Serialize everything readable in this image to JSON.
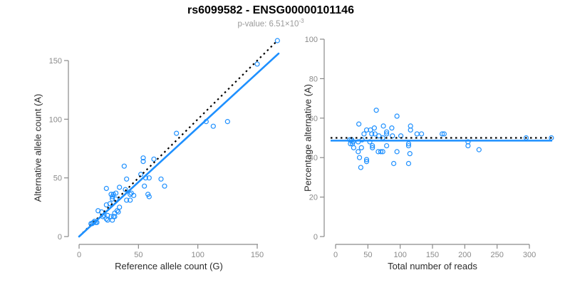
{
  "header": {
    "title": "rs6099582 - ENSG00000101146",
    "pvalue_prefix": "p-value: 6.51×10",
    "pvalue_exponent": "-3"
  },
  "colors": {
    "accent_blue": "#1E90FF",
    "dotted_black": "#000000",
    "axis_gray": "#8a8a8a",
    "label_dark": "#2b2b2b"
  },
  "chart_data": [
    {
      "type": "scatter",
      "name": "allele-count-scatter",
      "xlabel": "Reference allele count (G)",
      "ylabel": "Alternative allele count (A)",
      "xticks": [
        0,
        50,
        100,
        150
      ],
      "yticks": [
        0,
        50,
        100,
        150
      ],
      "xlim": [
        0,
        168
      ],
      "ylim": [
        0,
        170
      ],
      "legend": "none",
      "grid": false,
      "identity_line": {
        "style": "dotted",
        "from": [
          0,
          0
        ],
        "to": [
          166,
          166
        ]
      },
      "fit_line": {
        "style": "solid",
        "from": [
          0,
          0
        ],
        "to": [
          168,
          156
        ]
      },
      "points": [
        [
          167,
          167
        ],
        [
          150,
          147
        ],
        [
          125,
          98
        ],
        [
          113,
          94
        ],
        [
          107,
          98
        ],
        [
          82,
          88
        ],
        [
          63,
          66
        ],
        [
          54,
          67
        ],
        [
          54,
          64
        ],
        [
          38,
          60
        ],
        [
          52,
          53
        ],
        [
          59,
          50
        ],
        [
          56,
          50
        ],
        [
          69,
          49
        ],
        [
          40,
          49
        ],
        [
          55,
          43
        ],
        [
          72,
          43
        ],
        [
          34,
          42
        ],
        [
          23,
          41
        ],
        [
          39,
          40
        ],
        [
          44,
          37
        ],
        [
          31,
          37
        ],
        [
          46,
          35
        ],
        [
          59,
          34
        ],
        [
          28,
          34
        ],
        [
          29,
          36
        ],
        [
          27,
          36
        ],
        [
          43,
          36
        ],
        [
          58,
          36
        ],
        [
          40,
          31
        ],
        [
          43,
          31
        ],
        [
          28,
          32
        ],
        [
          31,
          32
        ],
        [
          26,
          28
        ],
        [
          23,
          27
        ],
        [
          34,
          25
        ],
        [
          32,
          22
        ],
        [
          16,
          22
        ],
        [
          33,
          21
        ],
        [
          19,
          21
        ],
        [
          30,
          20
        ],
        [
          21,
          18
        ],
        [
          24,
          18
        ],
        [
          27,
          17
        ],
        [
          29,
          17
        ],
        [
          30,
          17
        ],
        [
          20,
          17
        ],
        [
          23,
          15
        ],
        [
          24,
          14
        ],
        [
          28,
          14
        ],
        [
          15,
          12
        ],
        [
          14,
          12
        ],
        [
          13,
          13
        ],
        [
          11,
          11
        ],
        [
          10,
          11
        ],
        [
          12,
          12
        ]
      ]
    },
    {
      "type": "scatter",
      "name": "percentage-vs-reads-scatter",
      "xlabel": "Total number of reads",
      "ylabel": "Percentage alternative (A)",
      "xticks": [
        0,
        50,
        100,
        150,
        200,
        250,
        300
      ],
      "yticks": [
        0,
        20,
        40,
        60,
        80,
        100
      ],
      "xlim": [
        -8,
        338
      ],
      "ylim": [
        0,
        100
      ],
      "legend": "none",
      "grid": false,
      "expected_line": {
        "style": "dotted",
        "y": 50
      },
      "fit_line": {
        "style": "solid",
        "y": 48.6
      },
      "points": [
        [
          63,
          64
        ],
        [
          95,
          61
        ],
        [
          36,
          57
        ],
        [
          74,
          56
        ],
        [
          116,
          56
        ],
        [
          60,
          55
        ],
        [
          87,
          55
        ],
        [
          116,
          54
        ],
        [
          48,
          54
        ],
        [
          54,
          54
        ],
        [
          79,
          53
        ],
        [
          61,
          52
        ],
        [
          56,
          52
        ],
        [
          79,
          52
        ],
        [
          44,
          52
        ],
        [
          126,
          52
        ],
        [
          133,
          52
        ],
        [
          165,
          52
        ],
        [
          168,
          52
        ],
        [
          67,
          51
        ],
        [
          88,
          51
        ],
        [
          101,
          51
        ],
        [
          73,
          50
        ],
        [
          295,
          50
        ],
        [
          334,
          50
        ],
        [
          41,
          49
        ],
        [
          22,
          49
        ],
        [
          25,
          49
        ],
        [
          27,
          48
        ],
        [
          35,
          48
        ],
        [
          53,
          48
        ],
        [
          205,
          48
        ],
        [
          23,
          47
        ],
        [
          113,
          47
        ],
        [
          26,
          47
        ],
        [
          57,
          46
        ],
        [
          79,
          46
        ],
        [
          113,
          46
        ],
        [
          205,
          46
        ],
        [
          28,
          45
        ],
        [
          40,
          45
        ],
        [
          57,
          45
        ],
        [
          222,
          44
        ],
        [
          66,
          43
        ],
        [
          70,
          43
        ],
        [
          73,
          43
        ],
        [
          95,
          43
        ],
        [
          35,
          43
        ],
        [
          115,
          42
        ],
        [
          37,
          40
        ],
        [
          48,
          39
        ],
        [
          48,
          38
        ],
        [
          90,
          37
        ],
        [
          113,
          37
        ],
        [
          39,
          35
        ]
      ]
    }
  ]
}
